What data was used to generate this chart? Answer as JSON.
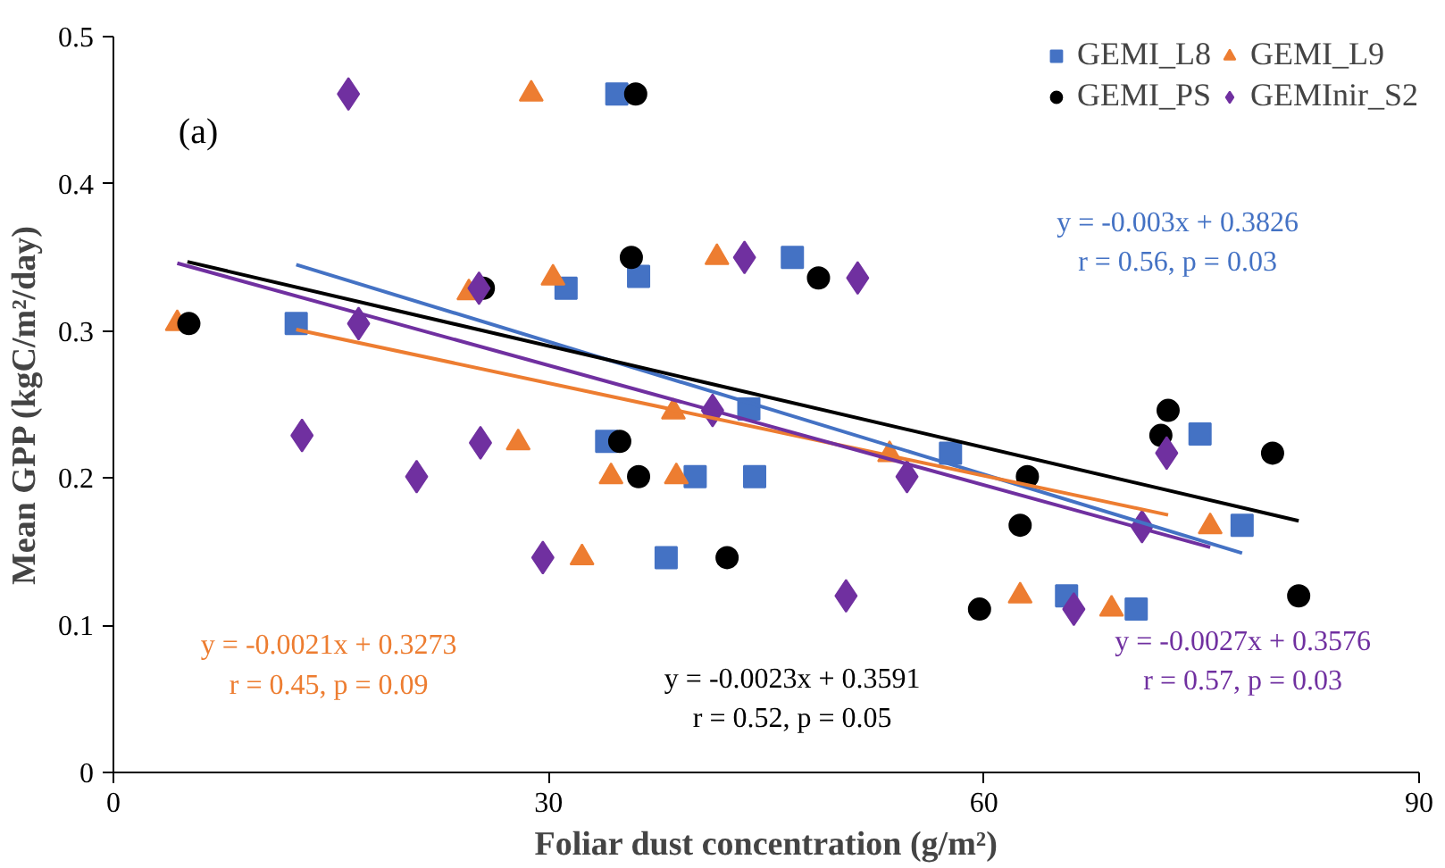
{
  "chart_data": {
    "type": "scatter",
    "xlabel": "Foliar dust concentration (g/m²)",
    "ylabel": "Mean GPP (kgC/m²/day)",
    "xlim": [
      0,
      90
    ],
    "xticks": [
      0,
      30,
      60,
      90
    ],
    "ylim": [
      0,
      0.5
    ],
    "yticks": [
      0,
      0.1,
      0.2,
      0.3,
      0.4,
      0.5
    ],
    "grid": false,
    "legend": "top right",
    "series": [
      {
        "name": "GEMI_L8",
        "color": "#4472c4",
        "marker": "square",
        "x": [
          34.7,
          12.6,
          31.2,
          36.2,
          46.8,
          34.0,
          40.1,
          44.2,
          38.1,
          43.8,
          57.7,
          74.9,
          77.8,
          65.7,
          70.5
        ],
        "values": [
          0.461,
          0.305,
          0.329,
          0.337,
          0.35,
          0.225,
          0.201,
          0.201,
          0.146,
          0.247,
          0.217,
          0.23,
          0.168,
          0.12,
          0.111
        ]
      },
      {
        "name": "GEMI_L9",
        "color": "#ed7d31",
        "marker": "triangle",
        "x": [
          4.4,
          28.8,
          24.5,
          30.3,
          41.6,
          38.6,
          27.9,
          34.3,
          38.8,
          32.3,
          53.5,
          75.6,
          62.5,
          68.8
        ],
        "values": [
          0.305,
          0.461,
          0.326,
          0.336,
          0.35,
          0.245,
          0.224,
          0.201,
          0.201,
          0.146,
          0.216,
          0.167,
          0.12,
          0.111
        ]
      },
      {
        "name": "GEMI_PS",
        "color": "#000000",
        "marker": "circle",
        "x": [
          5.2,
          36.0,
          25.5,
          35.7,
          48.6,
          34.9,
          36.2,
          42.3,
          63.0,
          62.5,
          72.7,
          72.2,
          79.9,
          59.7,
          81.7
        ],
        "values": [
          0.305,
          0.461,
          0.329,
          0.35,
          0.336,
          0.225,
          0.201,
          0.146,
          0.201,
          0.168,
          0.246,
          0.229,
          0.217,
          0.111,
          0.12
        ]
      },
      {
        "name": "GEMInir_S2",
        "color": "#7030a0",
        "marker": "diamond",
        "x": [
          16.2,
          16.9,
          25.2,
          43.5,
          51.3,
          13.0,
          25.3,
          20.9,
          29.6,
          41.3,
          54.7,
          72.6,
          70.9,
          50.5,
          66.2
        ],
        "values": [
          0.461,
          0.305,
          0.329,
          0.35,
          0.336,
          0.229,
          0.224,
          0.201,
          0.146,
          0.246,
          0.201,
          0.217,
          0.167,
          0.12,
          0.111
        ]
      },
      {
        "type": "line",
        "color": "#4472c4",
        "x": [
          12.6,
          77.8
        ],
        "values": [
          0.345,
          0.149
        ]
      },
      {
        "type": "line",
        "color": "#ed7d31",
        "x": [
          12.6,
          72.7
        ],
        "values": [
          0.301,
          0.175
        ]
      },
      {
        "type": "line",
        "color": "#000000",
        "x": [
          5.1,
          81.7
        ],
        "values": [
          0.347,
          0.171
        ]
      },
      {
        "type": "line",
        "color": "#7030a0",
        "x": [
          4.4,
          75.6
        ],
        "values": [
          0.346,
          0.153
        ]
      }
    ],
    "annotations": [
      "(a)",
      "y = -0.003x + 0.3826\nr = 0.56, p = 0.03",
      "y = -0.0021x + 0.3273\nr = 0.45, p = 0.09",
      "y = -0.0023x + 0.3591\nr = 0.52, p = 0.05",
      "y = -0.0027x + 0.3576\nr = 0.57, p = 0.03"
    ]
  }
}
